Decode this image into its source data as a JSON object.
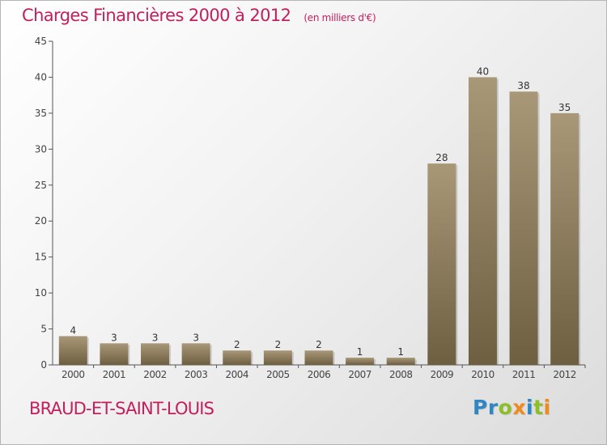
{
  "header": {
    "title": "Charges Financières 2000 à 2012",
    "unit": "(en milliers d'€)"
  },
  "footer": {
    "town": "BRAUD-ET-SAINT-LOUIS",
    "logo": {
      "letters": [
        {
          "char": "P",
          "color": "#2f86c4"
        },
        {
          "char": "r",
          "color": "#2f86c4"
        },
        {
          "char": "o",
          "color": "#8cbf2a"
        },
        {
          "char": "x",
          "color": "#f08a1c"
        },
        {
          "char": "i",
          "color": "#2f86c4"
        },
        {
          "char": "t",
          "color": "#8cbf2a"
        },
        {
          "char": "i",
          "color": "#f08a1c"
        }
      ]
    }
  },
  "colors": {
    "title": "#c41e5c",
    "bar_light": "#a89878",
    "bar_dark": "#6e5f41",
    "axis": "#555555"
  },
  "chart_data": {
    "type": "bar",
    "title": "Charges Financières 2000 à 2012",
    "subtitle": "(en milliers d'€)",
    "categories": [
      "2000",
      "2001",
      "2002",
      "2003",
      "2004",
      "2005",
      "2006",
      "2007",
      "2008",
      "2009",
      "2010",
      "2011",
      "2012"
    ],
    "values": [
      4,
      3,
      3,
      3,
      2,
      2,
      2,
      1,
      1,
      28,
      40,
      38,
      35
    ],
    "ylim": [
      0,
      45
    ],
    "yticks": [
      0,
      5,
      10,
      15,
      20,
      25,
      30,
      35,
      40,
      45
    ],
    "grid": false,
    "legend": "none"
  }
}
